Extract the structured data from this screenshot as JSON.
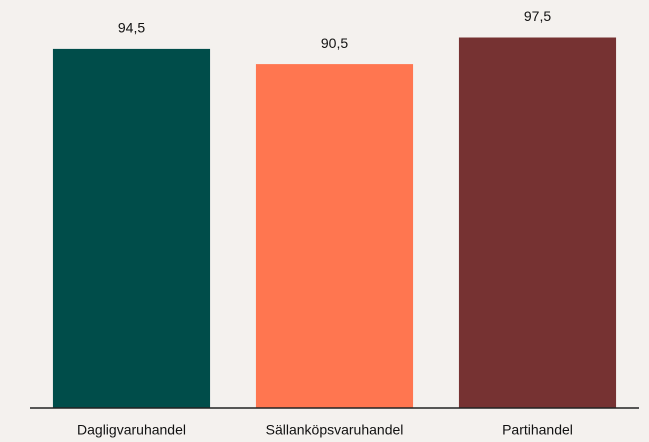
{
  "chart_data": {
    "type": "bar",
    "categories": [
      "Dagligvaruhandel",
      "Sällanköpsvaruhandel",
      "Partihandel"
    ],
    "values": [
      94.5,
      90.5,
      97.5
    ],
    "value_labels": [
      "94,5",
      "90,5",
      "97,5"
    ],
    "colors": [
      "#004d4a",
      "#ff7650",
      "#763232"
    ],
    "ylim": [
      0,
      100
    ]
  }
}
